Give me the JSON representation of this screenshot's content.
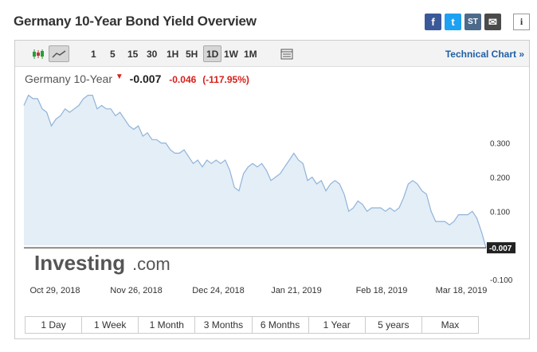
{
  "header": {
    "title": "Germany 10-Year Bond Yield Overview",
    "share": {
      "facebook": "f",
      "twitter": "t",
      "stocktwits": "ST",
      "email": "✉",
      "info": "i"
    }
  },
  "toolbar": {
    "intervals": [
      "1",
      "5",
      "15",
      "30",
      "1H",
      "5H",
      "1D",
      "1W",
      "1M"
    ],
    "active_interval": "1D",
    "technical_chart_label": "Technical Chart »"
  },
  "quote": {
    "name": "Germany 10-Year",
    "price": "-0.007",
    "change": "-0.046",
    "change_pct": "(-117.95%)",
    "down_color": "#d91e18"
  },
  "watermark": {
    "brand": "Investing",
    "suffix": ".com"
  },
  "chart_data": {
    "type": "area",
    "x_labels": [
      "Oct 29, 2018",
      "Nov 26, 2018",
      "Dec 24, 2018",
      "Jan 21, 2019",
      "Feb 18, 2019",
      "Mar 18, 2019"
    ],
    "y_ticks": [
      "0.300",
      "0.200",
      "0.100",
      "-0.100"
    ],
    "ylim": [
      -0.1,
      0.46
    ],
    "last_value_label": "-0.007",
    "series": [
      {
        "values": [
          0.41,
          0.44,
          0.43,
          0.43,
          0.4,
          0.39,
          0.35,
          0.37,
          0.38,
          0.4,
          0.39,
          0.4,
          0.41,
          0.43,
          0.44,
          0.44,
          0.4,
          0.41,
          0.4,
          0.4,
          0.38,
          0.39,
          0.37,
          0.35,
          0.34,
          0.35,
          0.32,
          0.33,
          0.31,
          0.31,
          0.3,
          0.3,
          0.28,
          0.27,
          0.27,
          0.28,
          0.26,
          0.24,
          0.25,
          0.23,
          0.25,
          0.24,
          0.25,
          0.24,
          0.25,
          0.22,
          0.17,
          0.16,
          0.21,
          0.23,
          0.24,
          0.23,
          0.24,
          0.22,
          0.19,
          0.2,
          0.21,
          0.23,
          0.25,
          0.27,
          0.25,
          0.24,
          0.19,
          0.2,
          0.18,
          0.19,
          0.16,
          0.18,
          0.19,
          0.18,
          0.15,
          0.1,
          0.11,
          0.13,
          0.12,
          0.1,
          0.11,
          0.11,
          0.11,
          0.1,
          0.11,
          0.1,
          0.11,
          0.14,
          0.18,
          0.19,
          0.18,
          0.16,
          0.15,
          0.1,
          0.07,
          0.07,
          0.07,
          0.06,
          0.07,
          0.09,
          0.09,
          0.09,
          0.1,
          0.08,
          0.04,
          -0.007
        ],
        "color": "#8fb3d9",
        "fill": "#e4eef7"
      }
    ]
  },
  "ranges": [
    "1 Day",
    "1 Week",
    "1 Month",
    "3 Months",
    "6 Months",
    "1 Year",
    "5 years",
    "Max"
  ]
}
